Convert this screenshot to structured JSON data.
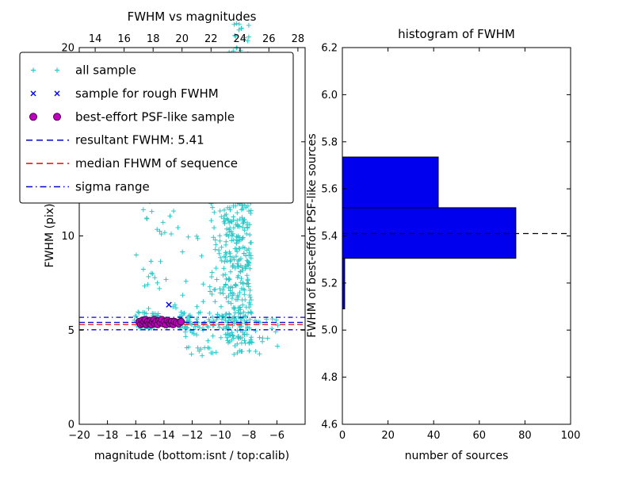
{
  "figure": {
    "background": "#ffffff"
  },
  "chart_data": [
    {
      "type": "scatter",
      "title": "FWHM vs magnitudes",
      "xlabel": "magnitude (bottom:isnt / top:calib)",
      "ylabel": "FWHM (pix)",
      "xlim": [
        -20,
        -4
      ],
      "ylim": [
        0,
        20
      ],
      "x_ticks": [
        -20,
        -18,
        -16,
        -14,
        -12,
        -10,
        -8,
        -6
      ],
      "y_ticks": [
        0,
        5,
        10,
        15,
        20
      ],
      "top_axis": {
        "lim": [
          12.9,
          28.5
        ],
        "ticks": [
          14,
          16,
          18,
          20,
          22,
          24,
          26,
          28
        ]
      },
      "grid": false,
      "legend_position": "upper-left",
      "series": [
        {
          "name": "all sample",
          "marker": "plus",
          "color": "#2cc8c8",
          "seed": 42,
          "clusters": [
            {
              "x": [
                -9.7,
                -7.8
              ],
              "y": [
                4.3,
                13.5
              ],
              "count": 320
            },
            {
              "x": [
                -9.4,
                -8.0
              ],
              "y": [
                13.5,
                20.0
              ],
              "count": 110
            },
            {
              "x": [
                -9.1,
                -7.9
              ],
              "y": [
                20.0,
                21.3
              ],
              "count": 12
            },
            {
              "x": [
                -10.8,
                -9.6
              ],
              "y": [
                5.0,
                13.0
              ],
              "count": 55
            },
            {
              "x": [
                -16.2,
                -10.5
              ],
              "y": [
                5.6,
                14.8
              ],
              "count": 80
            },
            {
              "x": [
                -16.2,
                -8.0
              ],
              "y": [
                5.05,
                5.95
              ],
              "count": 130
            },
            {
              "x": [
                -12.5,
                -7.2
              ],
              "y": [
                3.6,
                5.05
              ],
              "count": 45
            },
            {
              "x": [
                -7.6,
                -5.9
              ],
              "y": [
                4.1,
                5.7
              ],
              "count": 14
            },
            {
              "x": [
                -13.5,
                -9.8
              ],
              "y": [
                14.5,
                19.5
              ],
              "count": 15
            }
          ]
        },
        {
          "name": "sample for rough FWHM",
          "marker": "x",
          "color": "#0000ff",
          "points": [
            [
              -15.1,
              12.35
            ],
            [
              -13.65,
              6.35
            ],
            [
              -15.6,
              5.45
            ],
            [
              -15.0,
              5.5
            ],
            [
              -14.4,
              5.35
            ],
            [
              -13.9,
              5.5
            ],
            [
              -13.3,
              5.4
            ],
            [
              -12.9,
              5.45
            ]
          ]
        },
        {
          "name": "best-effort PSF-like sample",
          "marker": "circle",
          "color": "#bf00bf",
          "edge": "#4a004a",
          "points": [
            [
              -15.75,
              5.45
            ],
            [
              -15.65,
              5.3
            ],
            [
              -15.55,
              5.5
            ],
            [
              -15.5,
              5.35
            ],
            [
              -15.4,
              5.45
            ],
            [
              -15.3,
              5.55
            ],
            [
              -15.25,
              5.3
            ],
            [
              -15.15,
              5.45
            ],
            [
              -15.05,
              5.35
            ],
            [
              -14.95,
              5.5
            ],
            [
              -14.9,
              5.3
            ],
            [
              -14.8,
              5.45
            ],
            [
              -14.7,
              5.55
            ],
            [
              -14.65,
              5.35
            ],
            [
              -14.55,
              5.45
            ],
            [
              -14.45,
              5.3
            ],
            [
              -14.35,
              5.5
            ],
            [
              -14.25,
              5.4
            ],
            [
              -14.15,
              5.55
            ],
            [
              -14.05,
              5.35
            ],
            [
              -13.95,
              5.45
            ],
            [
              -13.85,
              5.3
            ],
            [
              -13.75,
              5.5
            ],
            [
              -13.65,
              5.4
            ],
            [
              -13.55,
              5.35
            ],
            [
              -13.45,
              5.45
            ],
            [
              -13.35,
              5.3
            ],
            [
              -13.25,
              5.45
            ],
            [
              -13.1,
              5.4
            ],
            [
              -12.95,
              5.35
            ],
            [
              -12.8,
              5.45
            ]
          ]
        }
      ],
      "hlines": [
        {
          "name": "resultant-fwhm",
          "y": 5.41,
          "style": "dashed",
          "color": "#0000cc"
        },
        {
          "name": "median-fwhm",
          "y": 5.3,
          "style": "dashed",
          "color": "#ff0000"
        },
        {
          "name": "sigma-low",
          "y": 5.02,
          "style": "dashdot",
          "color": "#0000cc"
        },
        {
          "name": "sigma-high",
          "y": 5.68,
          "style": "dashdot",
          "color": "#0000cc"
        }
      ],
      "legend": {
        "items": [
          {
            "label": "all sample",
            "marker": "plus",
            "color": "#2cc8c8"
          },
          {
            "label": "sample for rough FWHM",
            "marker": "x",
            "color": "#0000ff"
          },
          {
            "label": "best-effort PSF-like sample",
            "marker": "circle",
            "color": "#bf00bf",
            "edge": "#4a004a"
          },
          {
            "label": "resultant FWHM: 5.41",
            "marker": "dashed",
            "color": "#0000cc"
          },
          {
            "label": "median FHWM of sequence",
            "marker": "dashed",
            "color": "#ff0000"
          },
          {
            "label": "sigma range",
            "marker": "dashdot",
            "color": "#0000cc"
          }
        ]
      }
    },
    {
      "type": "bar",
      "orientation": "horizontal",
      "title": "histogram of FWHM",
      "xlabel": "number of sources",
      "ylabel": "FWHM of best-effort PSF-like sources",
      "xlim": [
        0,
        100
      ],
      "ylim": [
        4.6,
        6.2
      ],
      "x_ticks": [
        0,
        20,
        40,
        60,
        80,
        100
      ],
      "y_ticks": [
        4.6,
        4.8,
        5.0,
        5.2,
        5.4,
        5.6,
        5.8,
        6.0,
        6.2
      ],
      "bar_fill": "#0000ee",
      "bar_edge": "#000000",
      "bins": [
        {
          "from": 5.09,
          "to": 5.305,
          "count": 1
        },
        {
          "from": 5.305,
          "to": 5.52,
          "count": 76
        },
        {
          "from": 5.52,
          "to": 5.735,
          "count": 42
        }
      ],
      "hlines": [
        {
          "name": "resultant-fwhm",
          "y": 5.41,
          "style": "dashed",
          "color": "#000000"
        }
      ]
    }
  ]
}
